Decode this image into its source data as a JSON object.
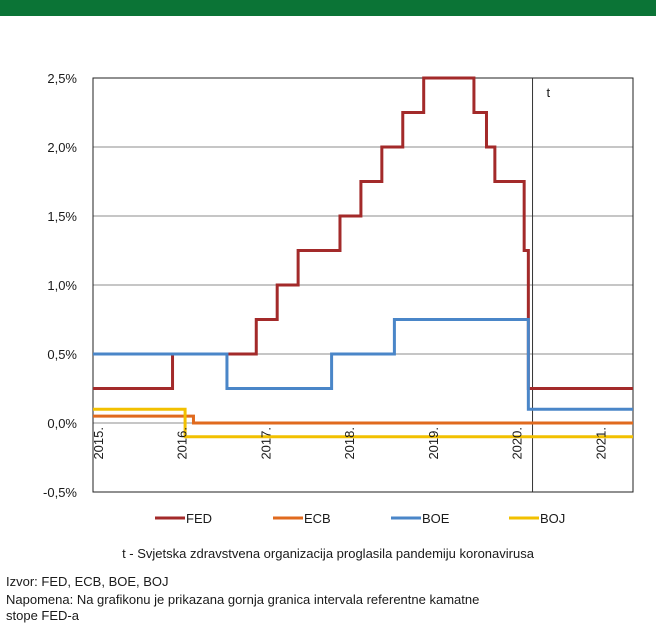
{
  "header": {
    "title": "",
    "color": "#0b7436"
  },
  "chart_data": {
    "type": "line",
    "step": true,
    "grid": "horizontal",
    "legend_position": "bottom",
    "y_ticks": [
      "2,5%",
      "2,0%",
      "1,5%",
      "1,0%",
      "0,5%",
      "0,0%",
      "-0,5%"
    ],
    "y_tick_values": [
      2.5,
      2.0,
      1.5,
      1.0,
      0.5,
      0.0,
      -0.5
    ],
    "ylim": [
      -0.5,
      2.5
    ],
    "xlim": [
      2015.0,
      2021.45
    ],
    "x_ticks": [
      "2015.",
      "2016.",
      "2017.",
      "2018.",
      "2019.",
      "2020.",
      "2021."
    ],
    "x_tick_values": [
      2015.0,
      2016.0,
      2017.0,
      2018.0,
      2019.0,
      2020.0,
      2021.0
    ],
    "annotation": {
      "label": "t",
      "x": 2020.25
    },
    "series": [
      {
        "name": "FED",
        "color": "#a32a2a",
        "points": [
          [
            2015.0,
            0.25
          ],
          [
            2015.95,
            0.25
          ],
          [
            2015.95,
            0.5
          ],
          [
            2016.95,
            0.5
          ],
          [
            2016.95,
            0.75
          ],
          [
            2017.2,
            0.75
          ],
          [
            2017.2,
            1.0
          ],
          [
            2017.45,
            1.0
          ],
          [
            2017.45,
            1.25
          ],
          [
            2017.95,
            1.25
          ],
          [
            2017.95,
            1.5
          ],
          [
            2018.2,
            1.5
          ],
          [
            2018.2,
            1.75
          ],
          [
            2018.45,
            1.75
          ],
          [
            2018.45,
            2.0
          ],
          [
            2018.7,
            2.0
          ],
          [
            2018.7,
            2.25
          ],
          [
            2018.95,
            2.25
          ],
          [
            2018.95,
            2.5
          ],
          [
            2019.55,
            2.5
          ],
          [
            2019.55,
            2.25
          ],
          [
            2019.7,
            2.25
          ],
          [
            2019.7,
            2.0
          ],
          [
            2019.8,
            2.0
          ],
          [
            2019.8,
            1.75
          ],
          [
            2020.15,
            1.75
          ],
          [
            2020.15,
            1.25
          ],
          [
            2020.2,
            1.25
          ],
          [
            2020.2,
            0.25
          ],
          [
            2021.45,
            0.25
          ]
        ]
      },
      {
        "name": "ECB",
        "color": "#e06a1e",
        "points": [
          [
            2015.0,
            0.05
          ],
          [
            2016.2,
            0.05
          ],
          [
            2016.2,
            0.0
          ],
          [
            2021.45,
            0.0
          ]
        ]
      },
      {
        "name": "BOE",
        "color": "#4a86c8",
        "points": [
          [
            2015.0,
            0.5
          ],
          [
            2016.6,
            0.5
          ],
          [
            2016.6,
            0.25
          ],
          [
            2017.85,
            0.25
          ],
          [
            2017.85,
            0.5
          ],
          [
            2018.6,
            0.5
          ],
          [
            2018.6,
            0.75
          ],
          [
            2020.2,
            0.75
          ],
          [
            2020.2,
            0.1
          ],
          [
            2021.45,
            0.1
          ]
        ]
      },
      {
        "name": "BOJ",
        "color": "#f2c000",
        "points": [
          [
            2015.0,
            0.1
          ],
          [
            2016.1,
            0.1
          ],
          [
            2016.1,
            -0.1
          ],
          [
            2021.45,
            -0.1
          ]
        ]
      }
    ]
  },
  "notes": {
    "caption": "t - Svjetska zdravstvena organizacija proglasila pandemiju koronavirusa",
    "source": "Izvor: FED, ECB, BOE, BOJ",
    "remark_line1": "Napomena: Na grafikonu je prikazana gornja granica intervala referentne kamatne",
    "remark_line2": "stope FED-a"
  }
}
